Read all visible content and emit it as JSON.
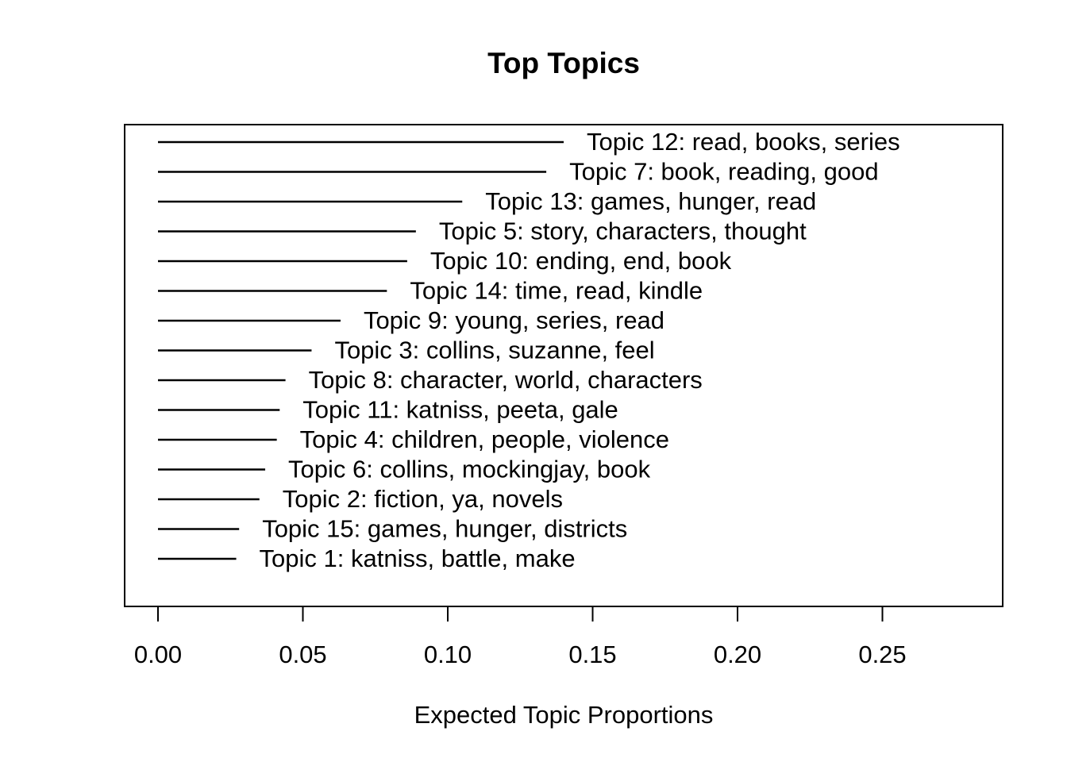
{
  "chart_data": {
    "type": "bar",
    "title": "Top Topics",
    "xlabel": "Expected Topic Proportions",
    "ylabel": "",
    "xlim": [
      0,
      0.29
    ],
    "x_ticks": [
      0.0,
      0.05,
      0.1,
      0.15,
      0.2,
      0.25
    ],
    "x_tick_labels": [
      "0.00",
      "0.05",
      "0.10",
      "0.15",
      "0.20",
      "0.25"
    ],
    "grid": false,
    "orientation": "horizontal",
    "categories": [
      "Topic 12: read, books, series",
      "Topic 7: book, reading, good",
      "Topic 13: games, hunger, read",
      "Topic 5: story, characters, thought",
      "Topic 10: ending, end, book",
      "Topic 14: time, read, kindle",
      "Topic 9: young, series, read",
      "Topic 3: collins, suzanne, feel",
      "Topic 8: character, world, characters",
      "Topic 11: katniss, peeta, gale",
      "Topic 4: children, people, violence",
      "Topic 6: collins, mockingjay, book",
      "Topic 2: fiction, ya, novels",
      "Topic 15: games, hunger, districts",
      "Topic 1: katniss, battle, make"
    ],
    "values": [
      0.14,
      0.134,
      0.105,
      0.089,
      0.086,
      0.079,
      0.063,
      0.053,
      0.044,
      0.042,
      0.041,
      0.037,
      0.035,
      0.028,
      0.027
    ]
  }
}
